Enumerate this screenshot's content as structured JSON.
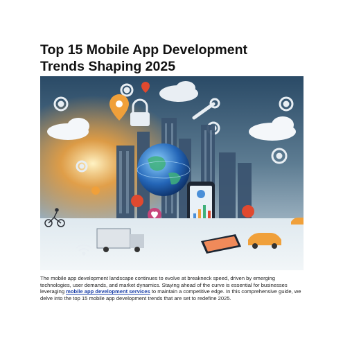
{
  "article": {
    "title_line1": "Top 15 Mobile App Development",
    "title_line2": "Trends Shaping 2025",
    "intro_before_link": "The mobile app development landscape continues to evolve at breakneck speed, driven by emerging technologies, user demands, and market dynamics. Staying ahead of the curve is essential for businesses leveraging ",
    "intro_link_text": "mobile app development services",
    "intro_after_link": " to maintain a competitive edge. In this comprehensive guide, we delve into the top 15 mobile app development trends that are set to redefine 2025."
  },
  "colors": {
    "link": "#1a3fa8",
    "sky_top": "#2a4a66",
    "sky_glow": "#f4a23a",
    "accent_red": "#e0492f",
    "accent_orange": "#f0a03a"
  },
  "hero_icons": [
    "gear-icon",
    "cloud-icon",
    "lock-icon",
    "wrench-icon",
    "location-pin-icon",
    "globe-icon",
    "smartphone-icon",
    "chart-icon",
    "truck-icon",
    "car-icon",
    "heart-icon",
    "wifi-icon",
    "tablet-icon",
    "cyclist-icon"
  ]
}
